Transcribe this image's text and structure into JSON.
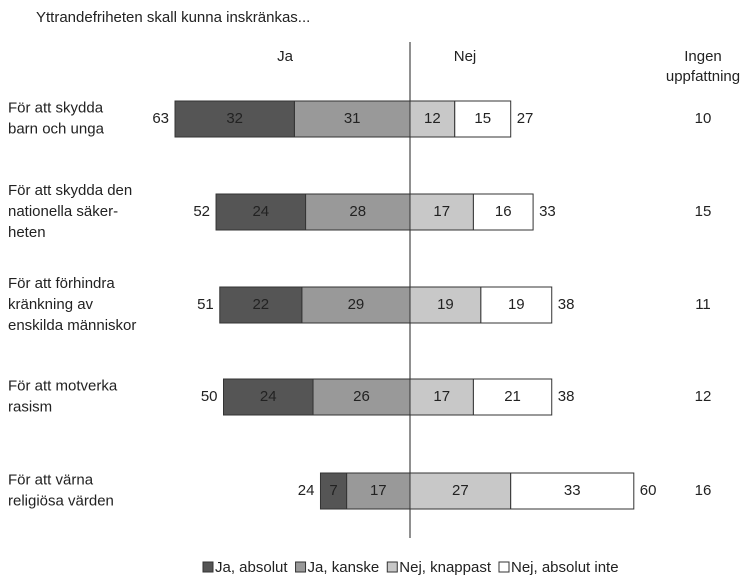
{
  "chart_data": {
    "type": "diverging_bar",
    "title": "Yttrandefriheten skall kunna inskränkas...",
    "ja_header": "Ja",
    "nej_header": "Nej",
    "no_opinion_header": [
      "Ingen",
      "uppfattning"
    ],
    "categories": [
      [
        "För att skydda",
        "barn och unga"
      ],
      [
        "För att skydda den",
        "nationella säker-",
        "heten"
      ],
      [
        "För att förhindra",
        "kränkning av",
        "enskilda människor"
      ],
      [
        "För att motverka",
        "rasism"
      ],
      [
        "För att värna",
        "religiösa värden"
      ]
    ],
    "series": [
      {
        "name": "Ja, absolut",
        "color": "#555555",
        "side": "ja",
        "values": [
          32,
          24,
          22,
          24,
          7
        ]
      },
      {
        "name": "Ja, kanske",
        "color": "#999999",
        "side": "ja",
        "values": [
          31,
          28,
          29,
          26,
          17
        ]
      },
      {
        "name": "Nej, knappast",
        "color": "#c8c8c8",
        "side": "nej",
        "values": [
          12,
          17,
          19,
          17,
          27
        ]
      },
      {
        "name": "Nej, absolut inte",
        "color": "#ffffff",
        "side": "nej",
        "values": [
          15,
          16,
          19,
          21,
          33
        ]
      }
    ],
    "ja_totals": [
      63,
      52,
      51,
      50,
      24
    ],
    "nej_totals": [
      27,
      33,
      38,
      38,
      60
    ],
    "no_opinion": [
      10,
      15,
      11,
      12,
      16
    ]
  }
}
